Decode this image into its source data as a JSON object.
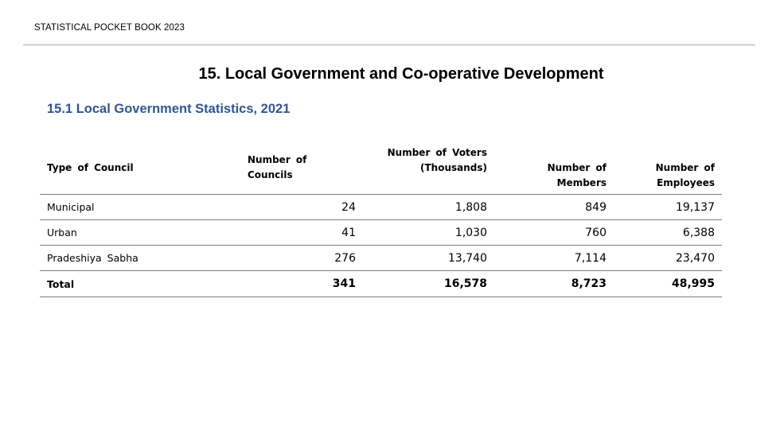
{
  "running_header": "STATISTICAL POCKET BOOK 2023",
  "chapter_title": "15. Local Government and Co-operative Development",
  "section_title": "15.1 Local Government Statistics, 2021",
  "table": {
    "headers": {
      "type_of_council": "Type of Council",
      "number_of_councils": "Number of Councils",
      "number_of_voters_line1": "Number of Voters",
      "number_of_voters_line2": "(Thousands)",
      "number_of_members_line1": "Number of",
      "number_of_members_line2": "Members",
      "number_of_employees_line1": "Number of",
      "number_of_employees_line2": "Employees"
    },
    "rows": [
      {
        "type": "Municipal",
        "councils": "24",
        "voters": "1,808",
        "members": "849",
        "employees": "19,137"
      },
      {
        "type": "Urban",
        "councils": "41",
        "voters": "1,030",
        "members": "760",
        "employees": "6,388"
      },
      {
        "type": "Pradeshiya Sabha",
        "councils": "276",
        "voters": "13,740",
        "members": "7,114",
        "employees": "23,470"
      }
    ],
    "total": {
      "type": "Total",
      "councils": "341",
      "voters": "16,578",
      "members": "8,723",
      "employees": "48,995"
    }
  }
}
